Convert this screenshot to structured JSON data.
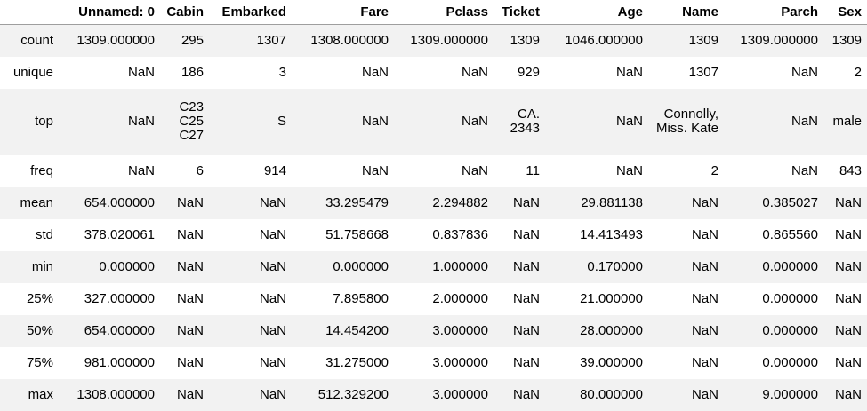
{
  "table": {
    "index_header": "",
    "columns": [
      "Unnamed: 0",
      "Cabin",
      "Embarked",
      "Fare",
      "Pclass",
      "Ticket",
      "Age",
      "Name",
      "Parch",
      "Sex"
    ],
    "rows": [
      {
        "label": "count",
        "cells": [
          "1309.000000",
          "295",
          "1307",
          "1308.000000",
          "1309.000000",
          "1309",
          "1046.000000",
          "1309",
          "1309.000000",
          "1309"
        ]
      },
      {
        "label": "unique",
        "cells": [
          "NaN",
          "186",
          "3",
          "NaN",
          "NaN",
          "929",
          "NaN",
          "1307",
          "NaN",
          "2"
        ]
      },
      {
        "label": "top",
        "cells": [
          "NaN",
          "C23 C25 C27",
          "S",
          "NaN",
          "NaN",
          "CA. 2343",
          "NaN",
          "Connolly, Miss. Kate",
          "NaN",
          "male"
        ]
      },
      {
        "label": "freq",
        "cells": [
          "NaN",
          "6",
          "914",
          "NaN",
          "NaN",
          "11",
          "NaN",
          "2",
          "NaN",
          "843"
        ]
      },
      {
        "label": "mean",
        "cells": [
          "654.000000",
          "NaN",
          "NaN",
          "33.295479",
          "2.294882",
          "NaN",
          "29.881138",
          "NaN",
          "0.385027",
          "NaN"
        ]
      },
      {
        "label": "std",
        "cells": [
          "378.020061",
          "NaN",
          "NaN",
          "51.758668",
          "0.837836",
          "NaN",
          "14.413493",
          "NaN",
          "0.865560",
          "NaN"
        ]
      },
      {
        "label": "min",
        "cells": [
          "0.000000",
          "NaN",
          "NaN",
          "0.000000",
          "1.000000",
          "NaN",
          "0.170000",
          "NaN",
          "0.000000",
          "NaN"
        ]
      },
      {
        "label": "25%",
        "cells": [
          "327.000000",
          "NaN",
          "NaN",
          "7.895800",
          "2.000000",
          "NaN",
          "21.000000",
          "NaN",
          "0.000000",
          "NaN"
        ]
      },
      {
        "label": "50%",
        "cells": [
          "654.000000",
          "NaN",
          "NaN",
          "14.454200",
          "3.000000",
          "NaN",
          "28.000000",
          "NaN",
          "0.000000",
          "NaN"
        ]
      },
      {
        "label": "75%",
        "cells": [
          "981.000000",
          "NaN",
          "NaN",
          "31.275000",
          "3.000000",
          "NaN",
          "39.000000",
          "NaN",
          "0.000000",
          "NaN"
        ]
      },
      {
        "label": "max",
        "cells": [
          "1308.000000",
          "NaN",
          "NaN",
          "512.329200",
          "3.000000",
          "NaN",
          "80.000000",
          "NaN",
          "9.000000",
          "NaN"
        ]
      }
    ]
  }
}
